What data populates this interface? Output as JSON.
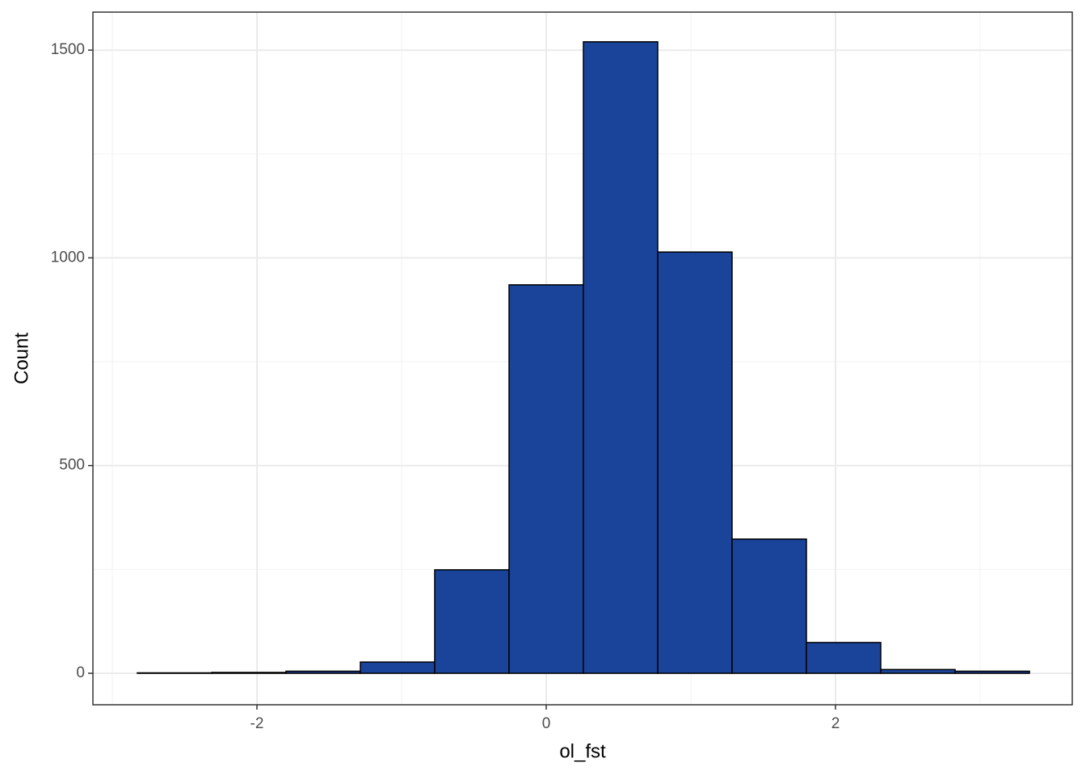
{
  "chart_data": {
    "type": "histogram",
    "x_label": "ol_fst",
    "y_label": "Count",
    "bins": [
      -2.827,
      -2.313,
      -1.799,
      -1.285,
      -0.771,
      -0.257,
      0.257,
      0.771,
      1.285,
      1.799,
      2.313,
      2.827,
      3.341
    ],
    "values": [
      1,
      2,
      5,
      27,
      249,
      935,
      1520,
      1014,
      323,
      74,
      9,
      5
    ],
    "color": "#1a449a",
    "edge_color": "#000000",
    "xlim": [
      -3.134,
      3.637
    ],
    "ylim": [
      -75.8,
      1591.5
    ],
    "xticks": [
      -2,
      0,
      2
    ],
    "yticks": [
      0,
      500,
      1000,
      1500
    ],
    "minor_xticks": [
      -3,
      -1,
      1,
      3
    ],
    "minor_yticks": [
      250,
      750,
      1250
    ],
    "grid": true
  }
}
